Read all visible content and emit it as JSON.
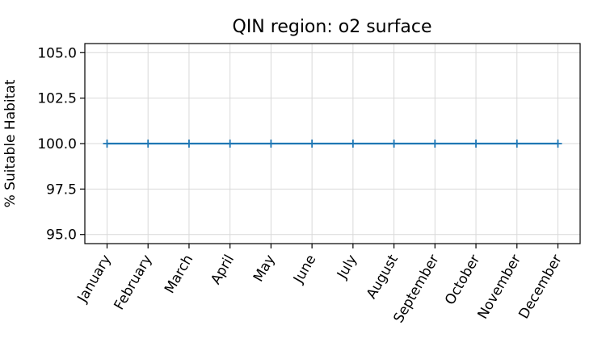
{
  "chart_data": {
    "type": "line",
    "title": "QIN region: o2 surface",
    "xlabel": "",
    "ylabel": "% Suitable Habitat",
    "categories": [
      "January",
      "February",
      "March",
      "April",
      "May",
      "June",
      "July",
      "August",
      "September",
      "October",
      "November",
      "December"
    ],
    "series": [
      {
        "values": [
          100.0,
          100.0,
          100.0,
          100.0,
          100.0,
          100.0,
          100.0,
          100.0,
          100.0,
          100.0,
          100.0,
          100.0
        ]
      }
    ],
    "ylim": [
      94.5,
      105.5
    ],
    "yticks": [
      95.0,
      97.5,
      100.0,
      102.5,
      105.0
    ],
    "ytick_labels": [
      "95.0",
      "97.5",
      "100.0",
      "102.5",
      "105.0"
    ],
    "grid": true,
    "marker": "plus",
    "colors": {
      "series": "#1f77b4",
      "grid": "#d9d9d9",
      "axis": "#000000"
    }
  }
}
